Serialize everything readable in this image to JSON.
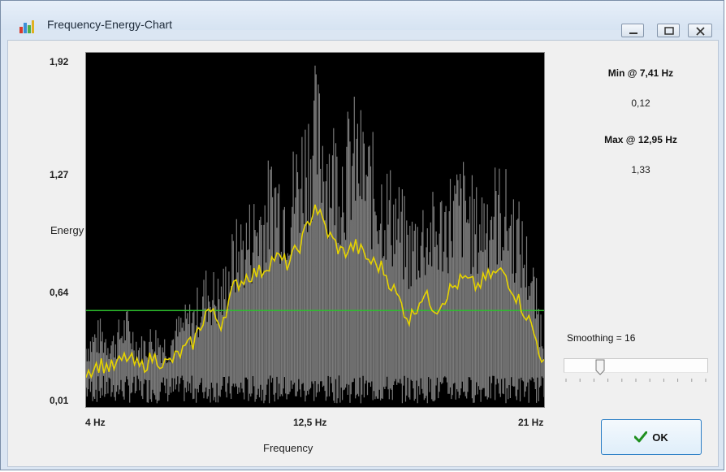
{
  "window": {
    "title": "Frequency-Energy-Chart",
    "icon": "chart-app-icon",
    "buttons": [
      "minimize-icon",
      "maximize-icon",
      "close-icon"
    ]
  },
  "stats": {
    "min_label": "Min @ 7,41 Hz",
    "min_value": "0,12",
    "max_label": "Max @ 12,95 Hz",
    "max_value": "1,33"
  },
  "smoothing": {
    "label": "Smoothing = 16",
    "value": 16,
    "min": 0,
    "max": 100
  },
  "ok_button": {
    "label": "OK",
    "icon": "checkmark-icon"
  },
  "colors": {
    "background": "#000000",
    "raw_series": "#7a7a7a",
    "smoothed_series": "#e6d300",
    "threshold": "#2dbf2d"
  },
  "chart_data": {
    "type": "line",
    "xlabel": "Frequency",
    "ylabel": "Energy",
    "xlim": [
      4,
      21
    ],
    "ylim": [
      0.01,
      1.92
    ],
    "x_ticks": [
      "4 Hz",
      "12,5 Hz",
      "21 Hz"
    ],
    "y_ticks": [
      "1,92",
      "1,27",
      "0,64",
      "0,01"
    ],
    "threshold": 0.53,
    "grid": false,
    "series": [
      {
        "color": "#e6d300",
        "x": [
          4.0,
          4.5,
          5.0,
          5.5,
          6.0,
          6.5,
          7.0,
          7.5,
          8.0,
          8.5,
          9.0,
          9.5,
          10.0,
          10.5,
          11.0,
          11.5,
          12.0,
          12.5,
          13.0,
          13.5,
          14.0,
          14.5,
          15.0,
          15.5,
          16.0,
          16.5,
          17.0,
          17.5,
          18.0,
          18.5,
          19.0,
          19.5,
          20.0,
          20.5,
          21.0
        ],
        "y": [
          0.2,
          0.24,
          0.22,
          0.28,
          0.22,
          0.28,
          0.24,
          0.3,
          0.36,
          0.54,
          0.46,
          0.66,
          0.72,
          0.74,
          0.82,
          0.78,
          0.9,
          1.1,
          0.94,
          0.84,
          0.88,
          0.8,
          0.76,
          0.62,
          0.48,
          0.62,
          0.54,
          0.64,
          0.7,
          0.66,
          0.72,
          0.74,
          0.6,
          0.46,
          0.24
        ]
      },
      {
        "color": "#7a7a7a",
        "x": [
          4.0,
          4.5,
          5.0,
          5.5,
          6.0,
          6.5,
          7.0,
          7.5,
          8.0,
          8.5,
          9.0,
          9.5,
          10.0,
          10.5,
          11.0,
          11.5,
          12.0,
          12.5,
          13.0,
          13.5,
          14.0,
          14.5,
          15.0,
          15.5,
          16.0,
          16.5,
          17.0,
          17.5,
          18.0,
          18.5,
          19.0,
          19.5,
          20.0,
          20.5,
          21.0
        ],
        "y": [
          0.42,
          0.5,
          0.44,
          0.56,
          0.4,
          0.48,
          0.42,
          0.54,
          0.62,
          0.8,
          0.74,
          1.02,
          1.14,
          1.28,
          1.44,
          1.36,
          1.62,
          1.88,
          1.66,
          1.58,
          1.72,
          1.54,
          1.4,
          1.3,
          1.08,
          1.2,
          1.18,
          1.32,
          1.38,
          1.22,
          1.36,
          1.34,
          1.18,
          0.9,
          0.46
        ]
      }
    ]
  }
}
